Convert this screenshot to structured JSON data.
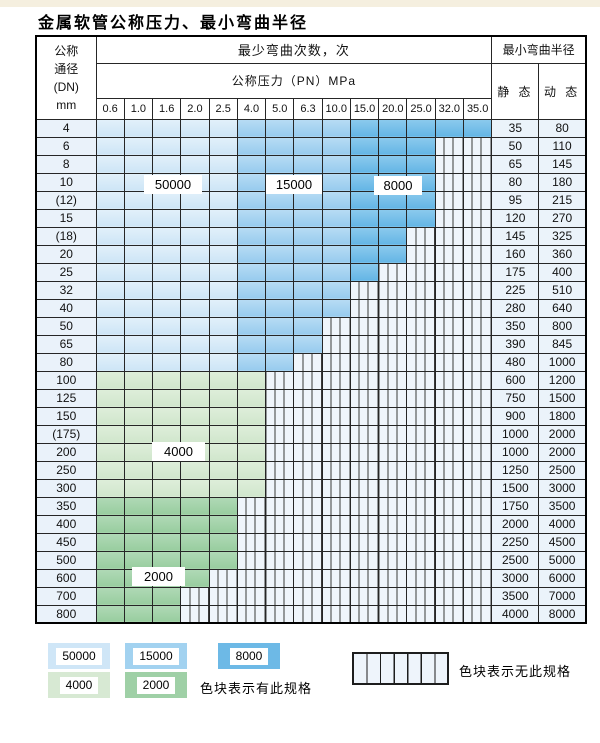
{
  "title": "金属软管公称压力、最小弯曲半径",
  "table": {
    "header": {
      "dn_lines": [
        "公称",
        "通径",
        "(DN)",
        "mm"
      ],
      "bend_cycles": "最少弯曲次数，次",
      "pressure": "公称压力（PN）MPa",
      "pressures": [
        "0.6",
        "1.0",
        "1.6",
        "2.0",
        "2.5",
        "4.0",
        "5.0",
        "6.3",
        "10.0",
        "15.0",
        "20.0",
        "25.0",
        "32.0",
        "35.0"
      ],
      "radius": "最小弯曲半径",
      "static": "静 态",
      "dynamic": "动 态"
    },
    "cycles_by_zone": {
      "c50": "50000",
      "c15": "15000",
      "c8": "8000",
      "g4": "4000",
      "g2": "2000"
    },
    "blue_column_zones": [
      {
        "zone": "c50",
        "pressures": [
          "0.6",
          "1.0",
          "1.6",
          "2.0",
          "2.5"
        ]
      },
      {
        "zone": "c15",
        "pressures": [
          "4.0",
          "5.0",
          "6.3",
          "10.0"
        ]
      },
      {
        "zone": "c8",
        "pressures": [
          "15.0",
          "20.0",
          "25.0",
          "32.0",
          "35.0"
        ]
      }
    ],
    "rows": [
      {
        "dn": "4",
        "static": "35",
        "dynamic": "80",
        "specified_through_col": 13,
        "band": "blue"
      },
      {
        "dn": "6",
        "static": "50",
        "dynamic": "110",
        "specified_through_col": 11,
        "band": "blue"
      },
      {
        "dn": "8",
        "static": "65",
        "dynamic": "145",
        "specified_through_col": 11,
        "band": "blue"
      },
      {
        "dn": "10",
        "static": "80",
        "dynamic": "180",
        "specified_through_col": 11,
        "band": "blue"
      },
      {
        "dn": "(12)",
        "static": "95",
        "dynamic": "215",
        "specified_through_col": 11,
        "band": "blue"
      },
      {
        "dn": "15",
        "static": "120",
        "dynamic": "270",
        "specified_through_col": 11,
        "band": "blue"
      },
      {
        "dn": "(18)",
        "static": "145",
        "dynamic": "325",
        "specified_through_col": 10,
        "band": "blue"
      },
      {
        "dn": "20",
        "static": "160",
        "dynamic": "360",
        "specified_through_col": 10,
        "band": "blue"
      },
      {
        "dn": "25",
        "static": "175",
        "dynamic": "400",
        "specified_through_col": 9,
        "band": "blue"
      },
      {
        "dn": "32",
        "static": "225",
        "dynamic": "510",
        "specified_through_col": 8,
        "band": "blue"
      },
      {
        "dn": "40",
        "static": "280",
        "dynamic": "640",
        "specified_through_col": 8,
        "band": "blue"
      },
      {
        "dn": "50",
        "static": "350",
        "dynamic": "800",
        "specified_through_col": 7,
        "band": "blue"
      },
      {
        "dn": "65",
        "static": "390",
        "dynamic": "845",
        "specified_through_col": 7,
        "band": "blue"
      },
      {
        "dn": "80",
        "static": "480",
        "dynamic": "1000",
        "specified_through_col": 6,
        "band": "blue"
      },
      {
        "dn": "100",
        "static": "600",
        "dynamic": "1200",
        "specified_through_col": 5,
        "band": "g4"
      },
      {
        "dn": "125",
        "static": "750",
        "dynamic": "1500",
        "specified_through_col": 5,
        "band": "g4"
      },
      {
        "dn": "150",
        "static": "900",
        "dynamic": "1800",
        "specified_through_col": 5,
        "band": "g4"
      },
      {
        "dn": "(175)",
        "static": "1000",
        "dynamic": "2000",
        "specified_through_col": 5,
        "band": "g4"
      },
      {
        "dn": "200",
        "static": "1000",
        "dynamic": "2000",
        "specified_through_col": 5,
        "band": "g4"
      },
      {
        "dn": "250",
        "static": "1250",
        "dynamic": "2500",
        "specified_through_col": 5,
        "band": "g4"
      },
      {
        "dn": "300",
        "static": "1500",
        "dynamic": "3000",
        "specified_through_col": 5,
        "band": "g4"
      },
      {
        "dn": "350",
        "static": "1750",
        "dynamic": "3500",
        "specified_through_col": 4,
        "band": "g2"
      },
      {
        "dn": "400",
        "static": "2000",
        "dynamic": "4000",
        "specified_through_col": 4,
        "band": "g2"
      },
      {
        "dn": "450",
        "static": "2250",
        "dynamic": "4500",
        "specified_through_col": 4,
        "band": "g2"
      },
      {
        "dn": "500",
        "static": "2500",
        "dynamic": "5000",
        "specified_through_col": 4,
        "band": "g2"
      },
      {
        "dn": "600",
        "static": "3000",
        "dynamic": "6000",
        "specified_through_col": 3,
        "band": "g2"
      },
      {
        "dn": "700",
        "static": "3500",
        "dynamic": "7000",
        "specified_through_col": 2,
        "band": "g2"
      },
      {
        "dn": "800",
        "static": "4000",
        "dynamic": "8000",
        "specified_through_col": 2,
        "band": "g2"
      }
    ]
  },
  "region_labels": {
    "blue_50000": "50000",
    "blue_15000": "15000",
    "blue_8000": "8000",
    "green_4000": "4000",
    "green_2000": "2000"
  },
  "legend": {
    "swatches": [
      {
        "label": "50000"
      },
      {
        "label": "15000"
      },
      {
        "label": "8000"
      },
      {
        "label": "4000"
      },
      {
        "label": "2000"
      }
    ],
    "has_spec_text": "色块表示有此规格",
    "no_spec_text": "色块表示无此规格"
  },
  "colors": {
    "cycles_50000": "#cfe6f7",
    "cycles_15000": "#a2d2f0",
    "cycles_8000": "#6db9e6",
    "cycles_4000": "#d7e9d3",
    "cycles_2000": "#9fd0a6",
    "no_spec_bg": "#eff5fb",
    "label_column_bg": "#eaf2fa",
    "grid_line": "#262626"
  }
}
